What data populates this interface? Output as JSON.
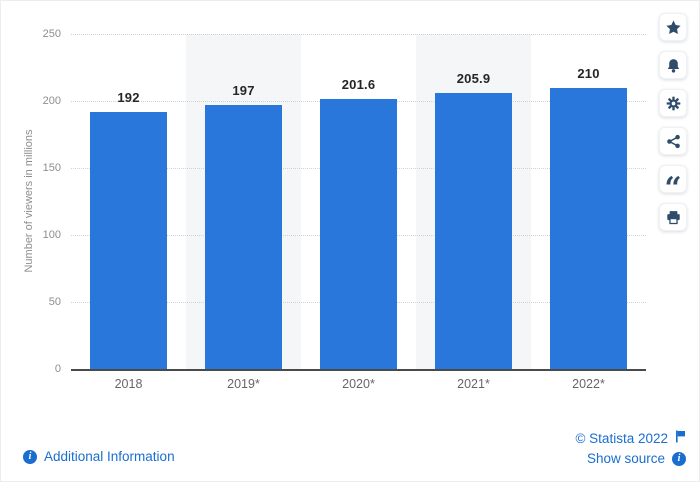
{
  "chart_data": {
    "type": "bar",
    "title": "",
    "categories": [
      "2018",
      "2019*",
      "2020*",
      "2021*",
      "2022*"
    ],
    "values": [
      192,
      197,
      201.6,
      205.9,
      210
    ],
    "xlabel": "",
    "ylabel": "Number of viewers in millions",
    "ylim": [
      0,
      250
    ],
    "yticks": [
      250,
      200,
      150,
      100,
      50,
      0
    ],
    "grid": "horizontal dotted",
    "legend": "none",
    "bar_color": "#2a77db",
    "band_columns": [
      1,
      3
    ],
    "band_color": "#f5f6f7"
  },
  "toolbar": {
    "buttons": [
      {
        "name": "favorite",
        "icon": "star-icon"
      },
      {
        "name": "notifications",
        "icon": "bell-icon"
      },
      {
        "name": "settings",
        "icon": "gear-icon"
      },
      {
        "name": "share",
        "icon": "share-icon"
      },
      {
        "name": "cite",
        "icon": "quote-icon"
      },
      {
        "name": "print",
        "icon": "print-icon"
      }
    ],
    "icon_color": "#2f4d6a"
  },
  "footer": {
    "additional_info_label": "Additional Information",
    "copyright_label": "© Statista 2022",
    "show_source_label": "Show source",
    "link_color": "#1a6ed0"
  }
}
